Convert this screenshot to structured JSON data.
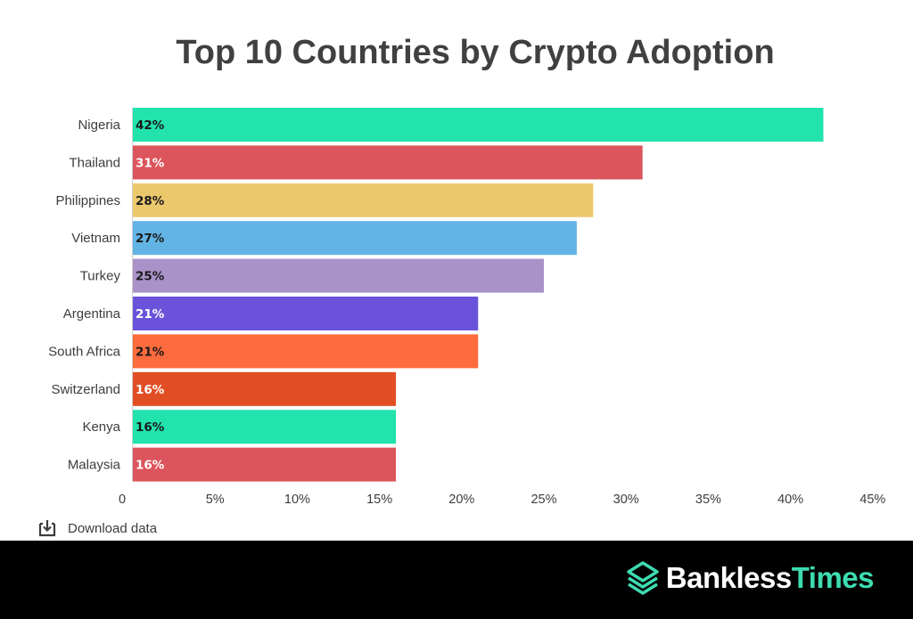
{
  "chart_data": {
    "type": "bar",
    "orientation": "horizontal",
    "title": "Top 10 Countries by Crypto Adoption",
    "categories": [
      "Nigeria",
      "Thailand",
      "Philippines",
      "Vietnam",
      "Turkey",
      "Argentina",
      "South Africa",
      "Switzerland",
      "Kenya",
      "Malaysia"
    ],
    "values": [
      42,
      31,
      28,
      27,
      25,
      21,
      21,
      16,
      16,
      16
    ],
    "value_labels": [
      "42%",
      "31%",
      "28%",
      "27%",
      "25%",
      "21%",
      "21%",
      "16%",
      "16%",
      "16%"
    ],
    "bar_colors": [
      "#22e3ad",
      "#dc545c",
      "#ecc86d",
      "#62b4e4",
      "#a992c8",
      "#6a52da",
      "#fe6b3d",
      "#e14e24",
      "#22e3ad",
      "#dc545c"
    ],
    "value_label_colors": [
      "#1a1a1a",
      "#ffffff",
      "#1a1a1a",
      "#1a1a1a",
      "#1a1a1a",
      "#ffffff",
      "#1a1a1a",
      "#ffffff",
      "#1a1a1a",
      "#ffffff"
    ],
    "xlim": [
      0,
      45
    ],
    "xticks": [
      0,
      5,
      10,
      15,
      20,
      25,
      30,
      35,
      40,
      45
    ],
    "xtick_labels": [
      "0",
      "5%",
      "10%",
      "15%",
      "20%",
      "25%",
      "30%",
      "35%",
      "40%",
      "45%"
    ],
    "xlabel": "",
    "ylabel": "",
    "grid": false
  },
  "download": {
    "label": "Download data",
    "icon": "download-icon"
  },
  "brand": {
    "part1": "Bankless",
    "part2": "Times",
    "icon": "bankless-times-logo-icon",
    "accent_color": "#3ddcb0"
  }
}
